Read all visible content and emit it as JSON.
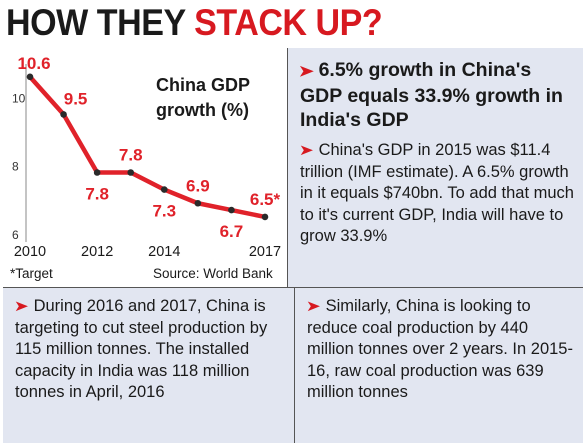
{
  "title": {
    "part1": "HOW THEY ",
    "part2": "STACK UP?"
  },
  "chart_data": {
    "type": "line",
    "title": "China GDP growth (%)",
    "title_line1": "China GDP",
    "title_line2": "growth (%)",
    "x": [
      2010,
      2011,
      2012,
      2013,
      2014,
      2015,
      2016,
      2017
    ],
    "values": [
      10.6,
      9.5,
      7.8,
      7.8,
      7.3,
      6.9,
      6.7,
      6.5
    ],
    "data_labels": [
      "10.6",
      "9.5",
      "7.8",
      "7.8",
      "7.3",
      "6.9",
      "6.7",
      "6.5*"
    ],
    "x_ticks": [
      "2010",
      "2012",
      "2014",
      "2017"
    ],
    "x_tick_values": [
      2010,
      2012,
      2014,
      2017
    ],
    "y_ticks": [
      "10",
      "8",
      "6"
    ],
    "y_tick_values": [
      10,
      8,
      6
    ],
    "ylim": [
      6,
      10.8
    ],
    "line_color": "#e0222a",
    "footnote": "*Target",
    "source": "Source: World Bank"
  },
  "info": {
    "headline": "6.5% growth in China's GDP equals 33.9% growth in India's GDP",
    "body": "China's GDP in 2015 was $11.4 trillion (IMF estimate). A 6.5% growth in it equals $740bn. To add that much to it's current GDP, India will have to grow 33.9%"
  },
  "bottom_left": {
    "text": "During 2016 and 2017, China is targeting to cut steel production by 115 million tonnes. The installed capacity in India was 118 million tonnes in April, 2016"
  },
  "bottom_right": {
    "text": "Similarly, China is looking to reduce coal production by 440 million tonnes over 2 years. In 2015-16, raw coal production was 639 million tonnes"
  },
  "colors": {
    "accent": "#d71920",
    "panel_bg": "#e2e6f1"
  },
  "icons": {
    "bullet": "red-arrow-icon"
  }
}
